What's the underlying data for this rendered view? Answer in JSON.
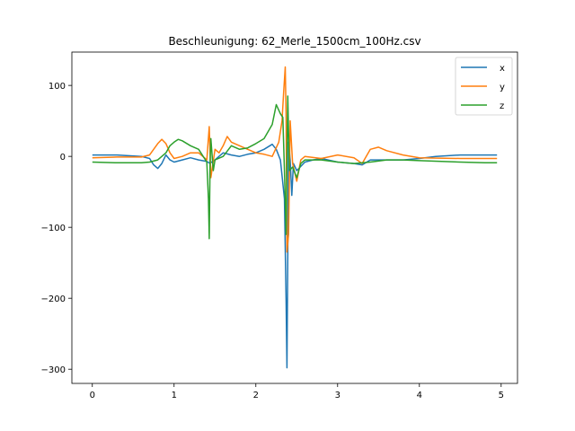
{
  "chart_data": {
    "type": "line",
    "title": "Beschleunigung: 62_Merle_1500cm_100Hz.csv",
    "xlabel": "",
    "ylabel": "",
    "xlim": [
      -0.25,
      5.2
    ],
    "ylim": [
      -320,
      147
    ],
    "grid": false,
    "legend_position": "top-right",
    "x_ticks": [
      0,
      1,
      2,
      3,
      4,
      5
    ],
    "y_ticks": [
      -300,
      -200,
      -100,
      0,
      100
    ],
    "x_tick_labels": [
      "0",
      "1",
      "2",
      "3",
      "4",
      "5"
    ],
    "y_tick_labels": [
      "−300",
      "−200",
      "−100",
      "0",
      "100"
    ],
    "series": [
      {
        "name": "x",
        "color": "#1f77b4",
        "points": [
          [
            0,
            2
          ],
          [
            0.3,
            2
          ],
          [
            0.6,
            0
          ],
          [
            0.7,
            -3
          ],
          [
            0.75,
            -12
          ],
          [
            0.8,
            -17
          ],
          [
            0.85,
            -10
          ],
          [
            0.9,
            2
          ],
          [
            0.95,
            -5
          ],
          [
            1.0,
            -8
          ],
          [
            1.1,
            -5
          ],
          [
            1.2,
            -2
          ],
          [
            1.3,
            -5
          ],
          [
            1.4,
            -7
          ],
          [
            1.44,
            -10
          ],
          [
            1.46,
            -8
          ],
          [
            1.5,
            -5
          ],
          [
            1.6,
            5
          ],
          [
            1.7,
            2
          ],
          [
            1.8,
            0
          ],
          [
            1.9,
            3
          ],
          [
            2.0,
            5
          ],
          [
            2.1,
            10
          ],
          [
            2.2,
            17
          ],
          [
            2.25,
            10
          ],
          [
            2.3,
            -5
          ],
          [
            2.35,
            -60
          ],
          [
            2.37,
            -200
          ],
          [
            2.38,
            -298
          ],
          [
            2.39,
            -140
          ],
          [
            2.4,
            20
          ],
          [
            2.42,
            -5
          ],
          [
            2.44,
            -55
          ],
          [
            2.46,
            -10
          ],
          [
            2.5,
            -20
          ],
          [
            2.6,
            -8
          ],
          [
            2.7,
            -5
          ],
          [
            2.8,
            -3
          ],
          [
            3.0,
            -8
          ],
          [
            3.2,
            -10
          ],
          [
            3.3,
            -12
          ],
          [
            3.4,
            -5
          ],
          [
            3.6,
            -5
          ],
          [
            3.8,
            -5
          ],
          [
            4.0,
            -3
          ],
          [
            4.2,
            0
          ],
          [
            4.5,
            2
          ],
          [
            4.8,
            2
          ],
          [
            4.95,
            2
          ]
        ]
      },
      {
        "name": "y",
        "color": "#ff7f0e",
        "points": [
          [
            0,
            -2
          ],
          [
            0.3,
            -1
          ],
          [
            0.6,
            -1
          ],
          [
            0.7,
            2
          ],
          [
            0.75,
            10
          ],
          [
            0.8,
            18
          ],
          [
            0.85,
            24
          ],
          [
            0.9,
            18
          ],
          [
            0.95,
            5
          ],
          [
            1.0,
            -3
          ],
          [
            1.1,
            0
          ],
          [
            1.2,
            5
          ],
          [
            1.3,
            5
          ],
          [
            1.4,
            -5
          ],
          [
            1.43,
            42
          ],
          [
            1.45,
            -30
          ],
          [
            1.5,
            10
          ],
          [
            1.55,
            5
          ],
          [
            1.6,
            15
          ],
          [
            1.65,
            28
          ],
          [
            1.7,
            20
          ],
          [
            1.8,
            15
          ],
          [
            1.9,
            10
          ],
          [
            2.0,
            5
          ],
          [
            2.1,
            3
          ],
          [
            2.2,
            0
          ],
          [
            2.28,
            20
          ],
          [
            2.32,
            50
          ],
          [
            2.34,
            90
          ],
          [
            2.36,
            126
          ],
          [
            2.37,
            60
          ],
          [
            2.38,
            -135
          ],
          [
            2.4,
            -110
          ],
          [
            2.42,
            50
          ],
          [
            2.45,
            -10
          ],
          [
            2.5,
            -35
          ],
          [
            2.55,
            -5
          ],
          [
            2.6,
            0
          ],
          [
            2.8,
            -3
          ],
          [
            3.0,
            2
          ],
          [
            3.2,
            -2
          ],
          [
            3.3,
            -10
          ],
          [
            3.35,
            0
          ],
          [
            3.4,
            10
          ],
          [
            3.5,
            13
          ],
          [
            3.6,
            8
          ],
          [
            3.8,
            2
          ],
          [
            4.0,
            -2
          ],
          [
            4.5,
            -3
          ],
          [
            4.8,
            -3
          ],
          [
            4.95,
            -3
          ]
        ]
      },
      {
        "name": "z",
        "color": "#2ca02c",
        "points": [
          [
            0,
            -8
          ],
          [
            0.3,
            -9
          ],
          [
            0.6,
            -9
          ],
          [
            0.7,
            -8
          ],
          [
            0.8,
            -5
          ],
          [
            0.9,
            5
          ],
          [
            0.95,
            15
          ],
          [
            1.0,
            20
          ],
          [
            1.05,
            24
          ],
          [
            1.1,
            22
          ],
          [
            1.2,
            15
          ],
          [
            1.3,
            10
          ],
          [
            1.4,
            -8
          ],
          [
            1.42,
            -60
          ],
          [
            1.43,
            -116
          ],
          [
            1.44,
            -10
          ],
          [
            1.45,
            25
          ],
          [
            1.48,
            -20
          ],
          [
            1.5,
            -5
          ],
          [
            1.6,
            0
          ],
          [
            1.7,
            15
          ],
          [
            1.8,
            10
          ],
          [
            1.9,
            12
          ],
          [
            2.0,
            18
          ],
          [
            2.1,
            25
          ],
          [
            2.2,
            45
          ],
          [
            2.25,
            73
          ],
          [
            2.3,
            60
          ],
          [
            2.33,
            55
          ],
          [
            2.35,
            -20
          ],
          [
            2.37,
            -110
          ],
          [
            2.39,
            85
          ],
          [
            2.41,
            -20
          ],
          [
            2.45,
            -15
          ],
          [
            2.5,
            -30
          ],
          [
            2.55,
            -10
          ],
          [
            2.6,
            -5
          ],
          [
            2.8,
            -5
          ],
          [
            3.0,
            -8
          ],
          [
            3.2,
            -10
          ],
          [
            3.4,
            -8
          ],
          [
            3.6,
            -5
          ],
          [
            3.8,
            -5
          ],
          [
            4.0,
            -6
          ],
          [
            4.5,
            -8
          ],
          [
            4.8,
            -9
          ],
          [
            4.95,
            -9
          ]
        ]
      }
    ]
  }
}
